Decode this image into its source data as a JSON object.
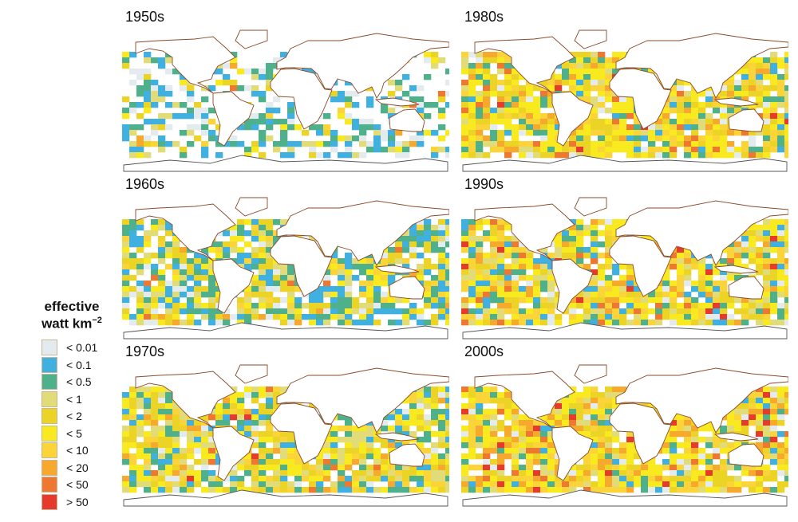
{
  "panels": [
    {
      "label": "1950s",
      "key": "1950s"
    },
    {
      "label": "1980s",
      "key": "1980s"
    },
    {
      "label": "1960s",
      "key": "1960s"
    },
    {
      "label": "1990s",
      "key": "1990s"
    },
    {
      "label": "1970s",
      "key": "1970s"
    },
    {
      "label": "2000s",
      "key": "2000s"
    }
  ],
  "legend": {
    "title_line1": "effective",
    "title_line2": "watt km",
    "title_sup": "−2",
    "items": [
      {
        "label": "< 0.01",
        "color": "#e3ebef"
      },
      {
        "label": "< 0.1",
        "color": "#3fb0e0"
      },
      {
        "label": "< 0.5",
        "color": "#4fb08c"
      },
      {
        "label": "< 1",
        "color": "#e2dc78"
      },
      {
        "label": "< 2",
        "color": "#ecd427"
      },
      {
        "label": "< 5",
        "color": "#f9e91f"
      },
      {
        "label": "< 10",
        "color": "#fbd43a"
      },
      {
        "label": "< 20",
        "color": "#f6a92d"
      },
      {
        "label": "< 50",
        "color": "#ee7832"
      },
      {
        "label": "> 50",
        "color": "#e53a2c"
      }
    ]
  }
}
